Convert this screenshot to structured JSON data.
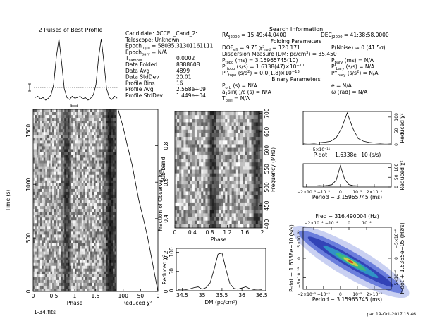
{
  "chart_data": [
    {
      "type": "profile",
      "title": "2 Pulses of Best Profile",
      "values": [
        10,
        12,
        8,
        10,
        6,
        9,
        14,
        30,
        72,
        100,
        64,
        24,
        10,
        7,
        12,
        9
      ],
      "color": "#000000"
    },
    {
      "type": "heatmap",
      "xlabel": "Phase",
      "ylabel": "Time (s)",
      "xlim": [
        0,
        2
      ],
      "xticks": [
        0,
        0.5,
        1,
        1.5
      ],
      "ylim": [
        0,
        1700
      ],
      "yticks": [
        0,
        500,
        1000,
        1500
      ]
    },
    {
      "type": "hline",
      "xlabel": "Reduced χ²",
      "xlim": [
        120,
        0
      ],
      "xticks": [
        100,
        50,
        0
      ],
      "y2label": "Fraction of Observation",
      "y2lim": [
        0,
        1
      ],
      "y2ticks": [
        0,
        0.2,
        0.4,
        0.6,
        0.8
      ],
      "x": [
        0,
        0.1,
        0.2,
        0.3,
        0.4,
        0.5,
        0.6,
        0.7,
        0.8,
        0.9,
        1
      ],
      "values": [
        0,
        10,
        20,
        30,
        42,
        55,
        65,
        75,
        88,
        100,
        115
      ],
      "color": "#000000"
    },
    {
      "type": "heatmap",
      "xlabel": "Phase",
      "ylabel": "Sub-band",
      "xlim": [
        0,
        2
      ],
      "xticks": [
        0,
        0.4,
        0.8,
        1.2,
        1.6,
        2
      ],
      "y2label": "Frequency (MHz)",
      "y2lim": [
        390,
        705
      ],
      "y2ticks": [
        400,
        450,
        500,
        550,
        600,
        650,
        700
      ]
    },
    {
      "type": "line",
      "xlabel": "DM (pc/cm³)",
      "ylabel": "Reduced χ²",
      "xlim": [
        34.35,
        36.6
      ],
      "xticks": [
        34.5,
        35,
        35.5,
        36,
        36.5
      ],
      "ylim": [
        0,
        110
      ],
      "yticks": [
        0,
        50,
        100
      ],
      "x": [
        34.4,
        34.5,
        34.6,
        34.7,
        34.8,
        34.9,
        35.0,
        35.1,
        35.2,
        35.3,
        35.4,
        35.5,
        35.6,
        35.7,
        35.8,
        35.9,
        36.0,
        36.1,
        36.2,
        36.3,
        36.4,
        36.5
      ],
      "values": [
        3,
        4,
        3,
        5,
        8,
        10,
        4,
        8,
        20,
        55,
        95,
        98,
        55,
        18,
        6,
        4,
        7,
        10,
        5,
        3,
        4,
        3
      ],
      "color": "#000000"
    },
    {
      "type": "line",
      "xlabel": "P-dot − 1.6338e−10 (s/s)",
      "xlim": [
        -8e-11,
        8e-11
      ],
      "xticks": [
        {
          "value": -5e-11,
          "label": "−5×10⁻¹¹"
        }
      ],
      "y2label": "Reduced χ²",
      "y2lim": [
        0,
        120
      ],
      "y2ticks": [
        0,
        50,
        100
      ],
      "x": [
        -8e-11,
        -7e-11,
        -6e-11,
        -5e-11,
        -4e-11,
        -3e-11,
        -2e-11,
        -1e-11,
        0,
        1e-11,
        2e-11,
        3e-11,
        4e-11,
        5e-11,
        6e-11,
        7e-11,
        8e-11
      ],
      "values": [
        5,
        6,
        5,
        7,
        9,
        12,
        25,
        60,
        115,
        60,
        22,
        12,
        8,
        6,
        5,
        6,
        5
      ],
      "color": "#000000"
    },
    {
      "type": "line",
      "xlabel": "Period − 3.15965745 (ms)",
      "xlim": [
        -2.2e-05,
        3e-05
      ],
      "xticks": [
        {
          "value": -2e-05,
          "label": "−2×10⁻⁵"
        },
        {
          "value": -1e-05,
          "label": "−10⁻⁵"
        },
        0,
        {
          "value": 1e-05,
          "label": "10⁻⁵"
        },
        {
          "value": 2e-05,
          "label": "2×10⁻⁵"
        }
      ],
      "y2label": "Reduced χ²",
      "y2lim": [
        0,
        120
      ],
      "y2ticks": [
        0,
        50,
        100
      ],
      "x": [
        -2e-05,
        -1.75e-05,
        -1.5e-05,
        -1.25e-05,
        -1e-05,
        -7.5e-06,
        -5e-06,
        -2.5e-06,
        0,
        2.5e-06,
        5e-06,
        7.5e-06,
        1e-05,
        1.25e-05,
        1.5e-05,
        1.75e-05,
        2e-05,
        2.25e-05,
        2.5e-05,
        2.75e-05,
        3e-05
      ],
      "values": [
        5,
        6,
        5,
        7,
        6,
        8,
        12,
        35,
        110,
        40,
        12,
        7,
        6,
        5,
        6,
        5,
        6,
        5,
        6,
        5,
        5
      ],
      "color": "#000000"
    },
    {
      "type": "plane",
      "xlabel": "Period − 3.15965745 (ms)",
      "xlim": [
        -2.2e-05,
        3e-05
      ],
      "xticks": [
        {
          "value": -2e-05,
          "label": "−2×10⁻⁵"
        },
        {
          "value": -1e-05,
          "label": "−10⁻⁵"
        },
        0,
        {
          "value": 1e-05,
          "label": "10⁻⁵"
        },
        {
          "value": 2e-05,
          "label": "2×10⁻⁵"
        }
      ],
      "x2label": "Freq − 316.490004 (Hz)",
      "x2lim": [
        -0.00026,
        0.00024
      ],
      "x2ticks": [
        {
          "value": -0.0002,
          "label": "−2×10⁻⁴"
        },
        {
          "value": -0.0001,
          "label": "−10⁻⁴"
        },
        0,
        {
          "value": 0.0001,
          "label": "10⁻⁴"
        }
      ],
      "ylabel": "P-dot − 1.6338e−10 (s/s)",
      "ylim": [
        -8e-11,
        8e-11
      ],
      "yticks": [
        {
          "value": -5e-11,
          "label": "−5×10⁻¹¹"
        },
        0,
        {
          "value": 5e-11,
          "label": "5×10⁻¹¹"
        }
      ],
      "y2label": "F-dot + 1.6365e−05 (Hz/s)",
      "y2lim": [
        8e-06,
        -8e-06
      ],
      "y2ticks": [
        {
          "value": 5e-06,
          "label": "5×10⁻⁶"
        },
        0,
        {
          "value": -5e-06,
          "label": "−5×10⁻⁶"
        }
      ]
    }
  ],
  "info_left": [
    {
      "label": [
        {
          "t": "Candidate:  ACCEL_Cand_2:"
        }
      ]
    },
    {
      "label": [
        {
          "t": "Telescope:  Unknown"
        }
      ]
    },
    {
      "label": [
        {
          "t": "Epoch"
        },
        {
          "sub": "topo"
        },
        {
          "t": " = 58035.31301161111"
        }
      ]
    },
    {
      "label": [
        {
          "t": "Epoch"
        },
        {
          "sub": "bary"
        },
        {
          "t": " = N/A"
        }
      ]
    },
    {
      "label": [
        {
          "t": "T"
        },
        {
          "sub": "sample"
        }
      ],
      "value": "0.0002"
    },
    {
      "label": [
        {
          "t": "Data Folded"
        }
      ],
      "value": "8388608"
    },
    {
      "label": [
        {
          "t": "Data Avg"
        }
      ],
      "value": "4899"
    },
    {
      "label": [
        {
          "t": "Data StdDev"
        }
      ],
      "value": "20.01"
    },
    {
      "label": [
        {
          "t": "Profile Bins"
        }
      ],
      "value": "16"
    },
    {
      "label": [
        {
          "t": "Profile Avg"
        }
      ],
      "value": "2.568e+09"
    },
    {
      "label": [
        {
          "t": "Profile StdDev"
        }
      ],
      "value": "1.449e+04"
    }
  ],
  "info_right": {
    "title": "Search Information",
    "rows": [
      {
        "left": [
          {
            "t": "RA"
          },
          {
            "sub": "J2000"
          },
          {
            "t": " = 15:49:44.0400"
          }
        ],
        "right": [
          {
            "t": "DEC"
          },
          {
            "sub": "J2000"
          },
          {
            "t": " = 41:38:58.0000"
          }
        ]
      },
      {
        "heading": "Folding Parameters"
      },
      {
        "left": [
          {
            "t": "DOF"
          },
          {
            "sub": "eff"
          },
          {
            "t": " = 9.75  χ²"
          },
          {
            "sub": "red"
          },
          {
            "t": " = 120.171"
          }
        ],
        "right": [
          {
            "t": "P(Noise) ≈ 0   (41.5σ)"
          }
        ]
      },
      {
        "left": [
          {
            "t": "Dispersion Measure (DM; pc/cm"
          },
          {
            "sup": "3"
          },
          {
            "t": ") = 35.450"
          }
        ]
      },
      {
        "left": [
          {
            "t": "P"
          },
          {
            "sub": "topo"
          },
          {
            "t": " (ms) = 3.15965745(10)"
          }
        ],
        "right": [
          {
            "t": "P"
          },
          {
            "sub": "bary"
          },
          {
            "t": " (ms) = N/A"
          }
        ]
      },
      {
        "left": [
          {
            "t": "P'"
          },
          {
            "sub": "topo"
          },
          {
            "t": " (s/s) = 1.6338(47)×10"
          },
          {
            "sup": "−10"
          }
        ],
        "right": [
          {
            "t": "P'"
          },
          {
            "sub": "bary"
          },
          {
            "t": " (s/s) = N/A"
          }
        ]
      },
      {
        "left": [
          {
            "t": "P''"
          },
          {
            "sub": "topo"
          },
          {
            "t": " (s/s"
          },
          {
            "sup": "2"
          },
          {
            "t": ") = 0.0(1.8)×10"
          },
          {
            "sup": "−13"
          }
        ],
        "right": [
          {
            "t": "P''"
          },
          {
            "sub": "bary"
          },
          {
            "t": " (s/s"
          },
          {
            "sup": "2"
          },
          {
            "t": ") = N/A"
          }
        ]
      },
      {
        "heading": "Binary Parameters"
      },
      {
        "left": [
          {
            "t": "P"
          },
          {
            "sub": "orb"
          },
          {
            "t": " (s) = N/A"
          }
        ],
        "right": [
          {
            "t": "e = N/A"
          }
        ]
      },
      {
        "left": [
          {
            "t": "a"
          },
          {
            "sub": "1"
          },
          {
            "t": "sin(i)/c (s) = N/A"
          }
        ],
        "right": [
          {
            "t": "ω (rad) = N/A"
          }
        ]
      },
      {
        "left": [
          {
            "t": "T"
          },
          {
            "sub": "peri"
          },
          {
            "t": " = N/A"
          }
        ]
      }
    ]
  },
  "footer_left": "1-34.fits",
  "footer_right": "pac 19-Oct-2017 13:46"
}
